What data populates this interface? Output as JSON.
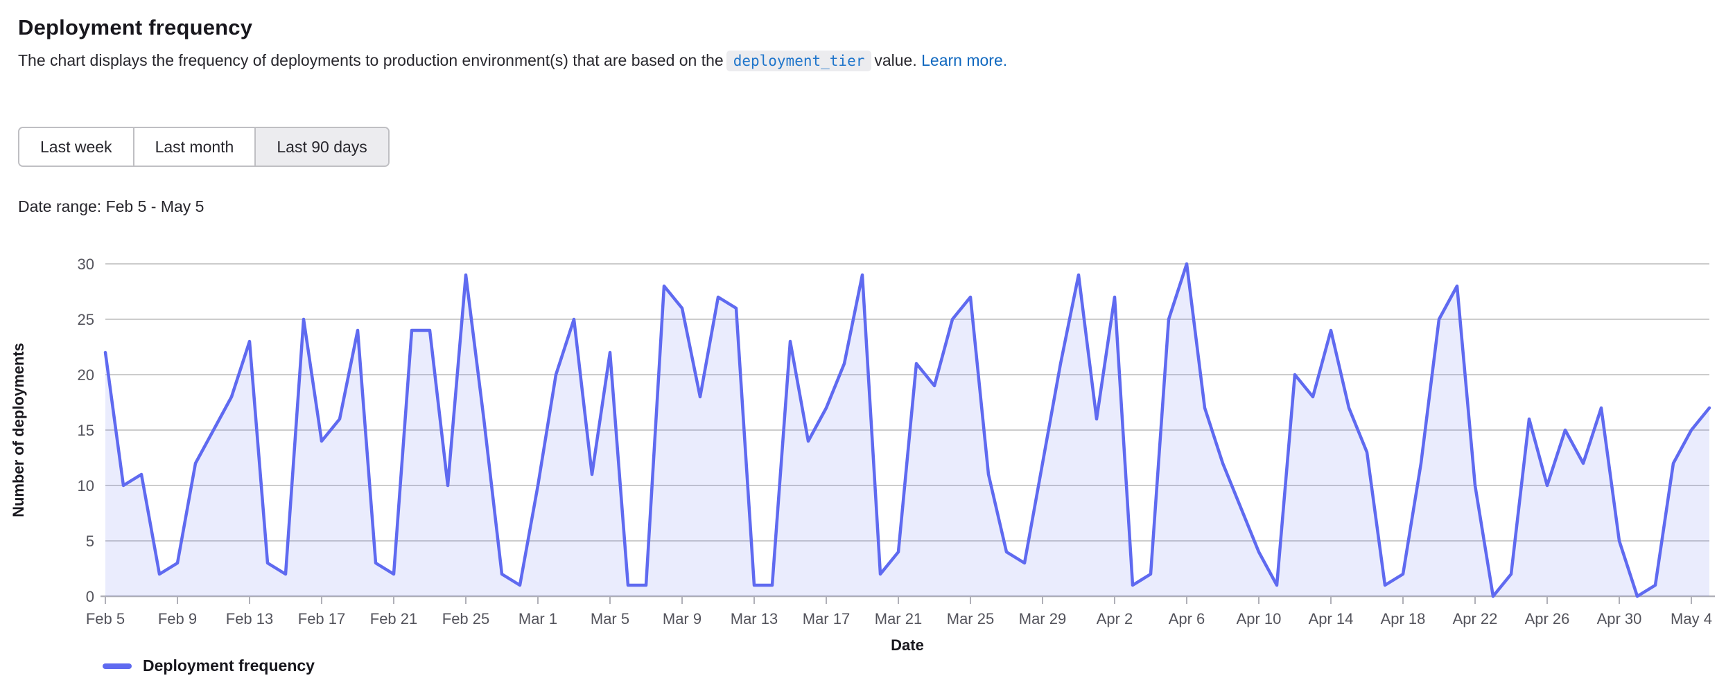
{
  "header": {
    "title": "Deployment frequency",
    "description_prefix": "The chart displays the frequency of deployments to production environment(s) that are based on the",
    "code_token": "deployment_tier",
    "description_suffix": "value.",
    "learn_more_link": "Learn more."
  },
  "filters": {
    "options": [
      {
        "label": "Last week",
        "selected": false
      },
      {
        "label": "Last month",
        "selected": false
      },
      {
        "label": "Last 90 days",
        "selected": true
      }
    ],
    "date_range_label": "Date range: Feb 5 - May 5"
  },
  "chart_data": {
    "type": "area",
    "title": "",
    "xlabel": "Date",
    "ylabel": "Number of deployments",
    "legend": "Deployment frequency",
    "ylim": [
      0,
      30
    ],
    "y_ticks": [
      0,
      5,
      10,
      15,
      20,
      25,
      30
    ],
    "x_tick_step": 4,
    "grid": true,
    "legend_position": "bottom-left",
    "colors": {
      "line": "#5f6af0",
      "fill": "rgba(95,106,240,0.13)",
      "gridline": "#cccccc",
      "axis": "#b0b0b8",
      "tick_text": "#54545c"
    },
    "dates": [
      "Feb 5",
      "Feb 6",
      "Feb 7",
      "Feb 8",
      "Feb 9",
      "Feb 10",
      "Feb 11",
      "Feb 12",
      "Feb 13",
      "Feb 14",
      "Feb 15",
      "Feb 16",
      "Feb 17",
      "Feb 18",
      "Feb 19",
      "Feb 20",
      "Feb 21",
      "Feb 22",
      "Feb 23",
      "Feb 24",
      "Feb 25",
      "Feb 26",
      "Feb 27",
      "Feb 28",
      "Mar 1",
      "Mar 2",
      "Mar 3",
      "Mar 4",
      "Mar 5",
      "Mar 6",
      "Mar 7",
      "Mar 8",
      "Mar 9",
      "Mar 10",
      "Mar 11",
      "Mar 12",
      "Mar 13",
      "Mar 14",
      "Mar 15",
      "Mar 16",
      "Mar 17",
      "Mar 18",
      "Mar 19",
      "Mar 20",
      "Mar 21",
      "Mar 22",
      "Mar 23",
      "Mar 24",
      "Mar 25",
      "Mar 26",
      "Mar 27",
      "Mar 28",
      "Mar 29",
      "Mar 30",
      "Mar 31",
      "Apr 1",
      "Apr 2",
      "Apr 3",
      "Apr 4",
      "Apr 5",
      "Apr 6",
      "Apr 7",
      "Apr 8",
      "Apr 9",
      "Apr 10",
      "Apr 11",
      "Apr 12",
      "Apr 13",
      "Apr 14",
      "Apr 15",
      "Apr 16",
      "Apr 17",
      "Apr 18",
      "Apr 19",
      "Apr 20",
      "Apr 21",
      "Apr 22",
      "Apr 23",
      "Apr 24",
      "Apr 25",
      "Apr 26",
      "Apr 27",
      "Apr 28",
      "Apr 29",
      "Apr 30",
      "May 1",
      "May 2",
      "May 3",
      "May 4",
      "May 5"
    ],
    "values": [
      22,
      10,
      11,
      2,
      3,
      12,
      15,
      18,
      23,
      3,
      2,
      25,
      14,
      16,
      24,
      3,
      2,
      24,
      24,
      10,
      29,
      16,
      2,
      1,
      10,
      20,
      25,
      11,
      22,
      1,
      1,
      28,
      26,
      18,
      27,
      26,
      1,
      1,
      23,
      14,
      17,
      21,
      29,
      2,
      4,
      21,
      19,
      25,
      27,
      11,
      4,
      3,
      12,
      21,
      29,
      16,
      27,
      1,
      2,
      25,
      30,
      17,
      12,
      8,
      4,
      1,
      20,
      18,
      24,
      17,
      13,
      1,
      2,
      12,
      25,
      28,
      10,
      0,
      2,
      16,
      10,
      15,
      12,
      17,
      5,
      0,
      1,
      12,
      15,
      17
    ]
  }
}
